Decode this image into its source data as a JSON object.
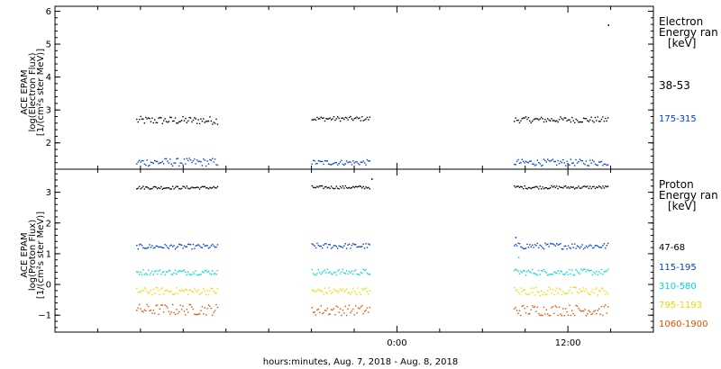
{
  "chart_data": [
    {
      "type": "scatter",
      "panel": "electron",
      "ylabel_lines": [
        "ACE EPAM",
        "log(Electron Flux)",
        "[1/(cm²s ster MeV)]"
      ],
      "ylim": [
        1.2,
        6.15
      ],
      "yticks": [
        2,
        3,
        4,
        5,
        6
      ],
      "legend_title_lines": [
        "Electron",
        "Energy ran",
        "[keV]"
      ],
      "series": [
        {
          "name": "38-53",
          "color": "#000000",
          "segments": [
            {
              "x0": -18.3,
              "x1": -12.6,
              "mean": 2.7,
              "jitter": 0.12
            },
            {
              "x0": -6.0,
              "x1": -1.9,
              "mean": 2.75,
              "jitter": 0.07
            },
            {
              "x0": 8.2,
              "x1": 14.8,
              "mean": 2.72,
              "jitter": 0.09
            }
          ],
          "outliers": [
            {
              "x": 14.8,
              "y": 5.6
            }
          ]
        },
        {
          "name": "175-315",
          "color": "#0040d0",
          "segments": [
            {
              "x0": -18.3,
              "x1": -12.6,
              "mean": 1.43,
              "jitter": 0.12
            },
            {
              "x0": -6.0,
              "x1": -1.9,
              "mean": 1.42,
              "jitter": 0.08
            },
            {
              "x0": 8.2,
              "x1": 14.8,
              "mean": 1.42,
              "jitter": 0.1
            }
          ],
          "outliers": []
        }
      ]
    },
    {
      "type": "scatter",
      "panel": "proton",
      "ylabel_lines": [
        "ACE EPAM",
        "log(Proton Flux)",
        "[1/(cm²s ster MeV)]"
      ],
      "ylim": [
        -1.55,
        3.75
      ],
      "yticks": [
        -1,
        0,
        1,
        2,
        3
      ],
      "legend_title_lines": [
        "Proton",
        "Energy ran",
        "[keV]"
      ],
      "series": [
        {
          "name": "47-68",
          "color": "#000000",
          "segments": [
            {
              "x0": -18.3,
              "x1": -12.6,
              "mean": 3.17,
              "jitter": 0.05
            },
            {
              "x0": -6.0,
              "x1": -1.9,
              "mean": 3.18,
              "jitter": 0.05
            },
            {
              "x0": 8.2,
              "x1": 14.8,
              "mean": 3.18,
              "jitter": 0.05
            }
          ],
          "outliers": [
            {
              "x": -1.8,
              "y": 3.45
            }
          ]
        },
        {
          "name": "115-195",
          "color": "#0040d0",
          "segments": [
            {
              "x0": -18.3,
              "x1": -12.6,
              "mean": 1.25,
              "jitter": 0.08
            },
            {
              "x0": -6.0,
              "x1": -1.9,
              "mean": 1.27,
              "jitter": 0.09
            },
            {
              "x0": 8.2,
              "x1": 14.8,
              "mean": 1.27,
              "jitter": 0.1
            }
          ],
          "outliers": [
            {
              "x": 8.3,
              "y": 1.55
            }
          ]
        },
        {
          "name": "310-580",
          "color": "#00d8d8",
          "segments": [
            {
              "x0": -18.3,
              "x1": -12.6,
              "mean": 0.42,
              "jitter": 0.09
            },
            {
              "x0": -6.0,
              "x1": -1.9,
              "mean": 0.42,
              "jitter": 0.1
            },
            {
              "x0": 8.2,
              "x1": 14.8,
              "mean": 0.42,
              "jitter": 0.1
            }
          ],
          "outliers": [
            {
              "x": 8.5,
              "y": 0.9
            }
          ]
        },
        {
          "name": "795-1193",
          "color": "#e0e000",
          "segments": [
            {
              "x0": -18.3,
              "x1": -12.6,
              "mean": -0.2,
              "jitter": 0.12
            },
            {
              "x0": -6.0,
              "x1": -1.9,
              "mean": -0.2,
              "jitter": 0.12
            },
            {
              "x0": 8.2,
              "x1": 14.8,
              "mean": -0.2,
              "jitter": 0.14
            }
          ],
          "outliers": []
        },
        {
          "name": "1060-1900",
          "color": "#e05000",
          "segments": [
            {
              "x0": -18.3,
              "x1": -12.6,
              "mean": -0.8,
              "jitter": 0.18
            },
            {
              "x0": -6.0,
              "x1": -1.9,
              "mean": -0.82,
              "jitter": 0.17
            },
            {
              "x0": 8.2,
              "x1": 14.8,
              "mean": -0.82,
              "jitter": 0.18
            }
          ],
          "outliers": []
        }
      ]
    }
  ],
  "x_axis": {
    "xlim": [
      -24,
      18
    ],
    "ticks": [
      {
        "value": 0,
        "label": "0:00"
      },
      {
        "value": 12,
        "label": "12:00"
      }
    ],
    "minor_every_hours": 3,
    "xlabel": "hours:minutes, Aug.  7, 2018 - Aug.  8, 2018"
  }
}
